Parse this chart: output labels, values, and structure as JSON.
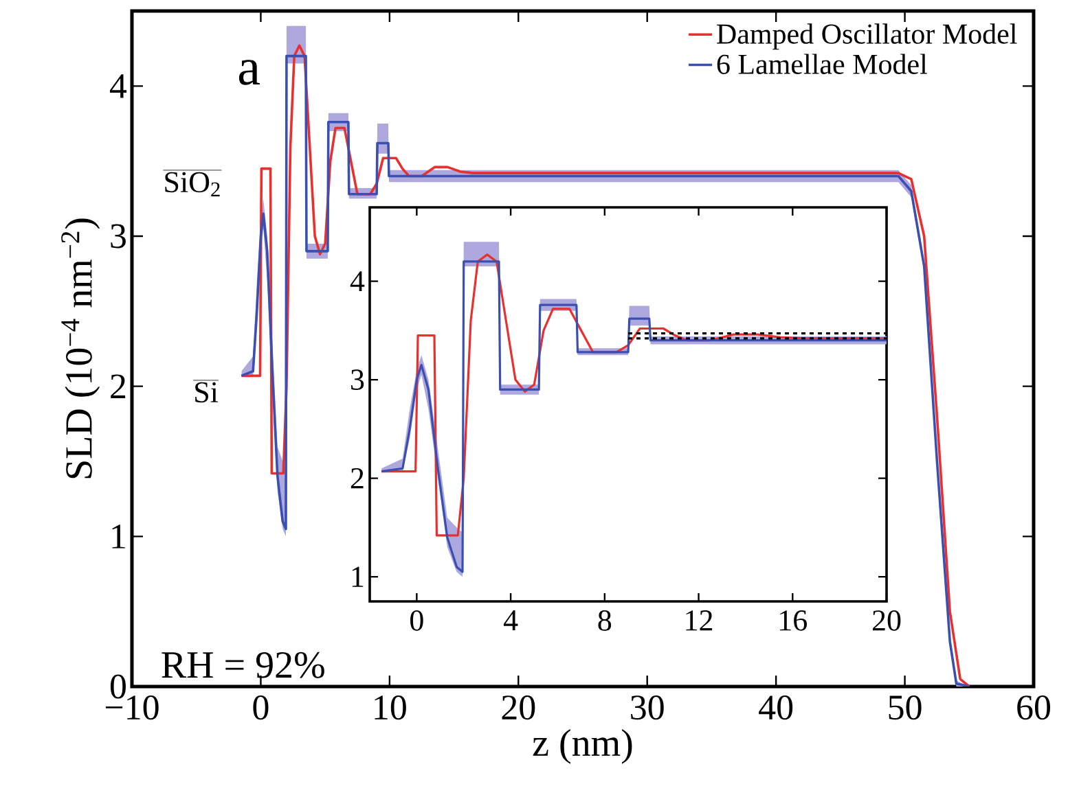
{
  "chart_data": [
    {
      "type": "line",
      "xlabel": "z (nm)",
      "ylabel": "SLD (10$^{−4}$ nm$^{−2}$)",
      "xlim": [
        -10,
        60
      ],
      "ylim": [
        0,
        4.5
      ],
      "xticks": [
        {
          "value": -10,
          "label": "−10"
        },
        0,
        10,
        20,
        30,
        40,
        50,
        60
      ],
      "yticks": [
        0,
        1,
        2,
        3,
        4
      ],
      "legend": "top right",
      "annotations": [
        "a",
        "RH = 92%",
        "SiO$_{2}$",
        "Si"
      ],
      "series": [
        {
          "name": "Damped Oscillator Model",
          "color": "#e8312f",
          "x": [
            -1.5,
            -0.05,
            0.05,
            0.75,
            0.85,
            1.75,
            2.0,
            2.3,
            2.6,
            3.0,
            3.4,
            3.8,
            4.2,
            4.6,
            5.0,
            5.4,
            5.8,
            6.5,
            7.0,
            7.5,
            8.5,
            9.0,
            9.5,
            10.5,
            11.0,
            11.5,
            12.5,
            13.5,
            14.5,
            15.5,
            16.5,
            20,
            49.5,
            50.5,
            51.5,
            52.5,
            53.5,
            54.3,
            55
          ],
          "values": [
            2.07,
            2.07,
            3.45,
            3.45,
            1.42,
            1.42,
            2.0,
            3.6,
            4.2,
            4.27,
            4.2,
            3.6,
            3.0,
            2.88,
            2.95,
            3.5,
            3.72,
            3.72,
            3.5,
            3.28,
            3.28,
            3.35,
            3.52,
            3.52,
            3.45,
            3.4,
            3.4,
            3.46,
            3.46,
            3.43,
            3.42,
            3.42,
            3.42,
            3.38,
            3.0,
            1.8,
            0.5,
            0.05,
            0
          ]
        },
        {
          "name": "6 Lamellae Model",
          "color": "#3a4fb0",
          "x": [
            -1.5,
            -0.6,
            -0.3,
            0,
            0.2,
            0.5,
            0.9,
            1.3,
            1.7,
            1.95,
            2.0,
            3.5,
            3.55,
            5.2,
            5.25,
            6.8,
            6.85,
            9.0,
            9.05,
            9.9,
            9.95,
            20,
            49.5,
            50.5,
            51.5,
            52.5,
            53.5,
            54,
            55
          ],
          "values": [
            2.07,
            2.1,
            2.5,
            3.0,
            3.15,
            2.9,
            2.1,
            1.4,
            1.1,
            1.05,
            4.2,
            4.2,
            2.9,
            2.9,
            3.76,
            3.76,
            3.28,
            3.28,
            3.62,
            3.62,
            3.4,
            3.4,
            3.4,
            3.3,
            2.8,
            1.5,
            0.3,
            0.02,
            0
          ],
          "lower": [
            2.07,
            2.07,
            2.4,
            2.9,
            3.05,
            2.7,
            2.0,
            1.3,
            1.05,
            1.0,
            4.15,
            4.15,
            2.85,
            2.85,
            3.7,
            3.7,
            3.25,
            3.25,
            3.55,
            3.55,
            3.36,
            3.36,
            3.36,
            3.26,
            2.76,
            1.46,
            0.26,
            0,
            0
          ],
          "upper": [
            2.1,
            2.2,
            2.7,
            3.1,
            3.25,
            3.0,
            2.3,
            1.6,
            1.5,
            1.45,
            4.4,
            4.4,
            2.95,
            2.95,
            3.82,
            3.82,
            3.32,
            3.32,
            3.75,
            3.75,
            3.44,
            3.44,
            3.44,
            3.34,
            2.84,
            1.54,
            0.34,
            0.04,
            0
          ]
        }
      ]
    },
    {
      "type": "line",
      "xlim": [
        -2,
        20
      ],
      "ylim": [
        0.75,
        4.75
      ],
      "xticks": [
        0,
        4,
        8,
        12,
        16,
        20
      ],
      "yticks": [
        1,
        2,
        3,
        4
      ],
      "series": [
        {
          "color": "#e8312f",
          "x": [
            -1.5,
            -0.05,
            0.05,
            0.75,
            0.85,
            1.75,
            2.0,
            2.3,
            2.6,
            3.0,
            3.4,
            3.8,
            4.2,
            4.6,
            5.0,
            5.4,
            5.8,
            6.5,
            7.0,
            7.5,
            8.5,
            9.0,
            9.5,
            10.5,
            11.0,
            11.5,
            12.5,
            13.5,
            14.5,
            15.5,
            16.5,
            20
          ],
          "values": [
            2.07,
            2.07,
            3.45,
            3.45,
            1.42,
            1.42,
            2.0,
            3.6,
            4.2,
            4.27,
            4.2,
            3.6,
            3.0,
            2.88,
            2.95,
            3.5,
            3.72,
            3.72,
            3.5,
            3.28,
            3.28,
            3.35,
            3.52,
            3.52,
            3.45,
            3.4,
            3.4,
            3.46,
            3.46,
            3.43,
            3.42,
            3.42
          ]
        },
        {
          "color": "#3a4fb0",
          "x": [
            -1.5,
            -0.6,
            -0.3,
            0,
            0.2,
            0.5,
            0.9,
            1.3,
            1.7,
            1.95,
            2.0,
            3.5,
            3.55,
            5.2,
            5.25,
            6.8,
            6.85,
            9.0,
            9.05,
            9.9,
            9.95,
            20
          ],
          "values": [
            2.07,
            2.1,
            2.5,
            3.0,
            3.15,
            2.9,
            2.1,
            1.4,
            1.1,
            1.05,
            4.2,
            4.2,
            2.9,
            2.9,
            3.76,
            3.76,
            3.28,
            3.28,
            3.62,
            3.62,
            3.4,
            3.4
          ],
          "lower": [
            2.07,
            2.07,
            2.4,
            2.9,
            3.05,
            2.7,
            2.0,
            1.3,
            1.05,
            1.0,
            4.15,
            4.15,
            2.85,
            2.85,
            3.7,
            3.7,
            3.25,
            3.25,
            3.55,
            3.55,
            3.36,
            3.36
          ],
          "upper": [
            2.1,
            2.2,
            2.7,
            3.1,
            3.25,
            3.0,
            2.3,
            1.6,
            1.5,
            1.45,
            4.4,
            4.4,
            2.95,
            2.95,
            3.82,
            3.82,
            3.32,
            3.32,
            3.75,
            3.75,
            3.44,
            3.44
          ]
        },
        {
          "type": "line",
          "line_style": "dashed",
          "color": "#000000",
          "x": [
            9,
            20
          ],
          "values": [
            3.47,
            3.47
          ]
        },
        {
          "type": "line",
          "line_style": "dashed",
          "color": "#000000",
          "x": [
            9,
            20
          ],
          "values": [
            3.42,
            3.42
          ]
        }
      ]
    }
  ]
}
